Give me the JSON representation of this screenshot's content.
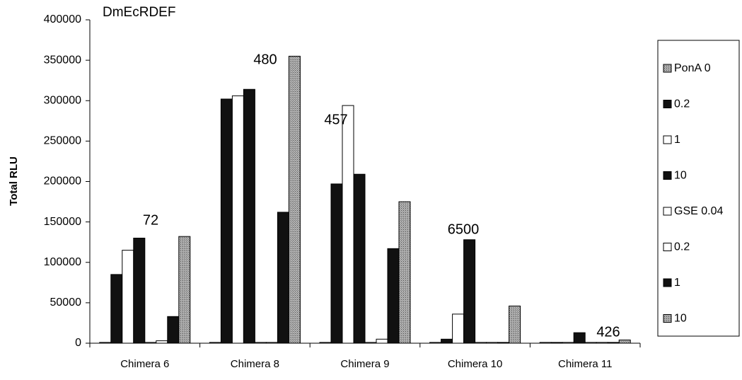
{
  "chart_data": {
    "type": "bar",
    "title": "DmEcRDEF",
    "y_label": "Total RLU",
    "categories": [
      "Chimera 6",
      "Chimera 8",
      "Chimera 9",
      "Chimera 10",
      "Chimera 11"
    ],
    "series": [
      {
        "name": "PonA 0",
        "color": "#9a9a9a",
        "values": [
          1000,
          1000,
          1000,
          1000,
          1000
        ]
      },
      {
        "name": "0.2",
        "color": "#111111",
        "values": [
          85000,
          302000,
          197000,
          5000,
          1000
        ]
      },
      {
        "name": "1",
        "color": "#ffffff",
        "values": [
          115000,
          306000,
          294000,
          36000,
          1000
        ]
      },
      {
        "name": "10",
        "color": "#111111",
        "values": [
          130000,
          314000,
          209000,
          128000,
          13000
        ]
      },
      {
        "name": "GSE 0.04",
        "color": "#ffffff",
        "values": [
          1000,
          1000,
          1000,
          1000,
          1000
        ]
      },
      {
        "name": "0.2",
        "color": "#ffffff",
        "values": [
          3000,
          1000,
          5000,
          1000,
          1000
        ]
      },
      {
        "name": "1",
        "color": "#111111",
        "values": [
          33000,
          162000,
          117000,
          1000,
          1000
        ]
      },
      {
        "name": "10",
        "color": "#9a9a9a",
        "values": [
          132000,
          355000,
          175000,
          46000,
          4000
        ]
      }
    ],
    "annotations": [
      "72",
      "480",
      "457",
      "6500",
      "426"
    ],
    "ylim": [
      0,
      400000
    ],
    "yticks": [
      0,
      50000,
      100000,
      150000,
      200000,
      250000,
      300000,
      350000,
      400000
    ],
    "grid": false
  }
}
